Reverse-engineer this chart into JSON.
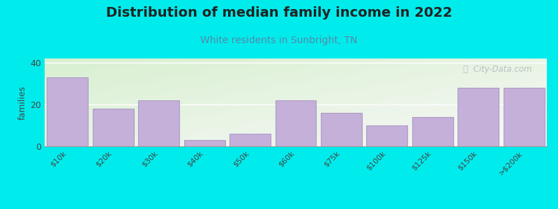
{
  "title": "Distribution of median family income in 2022",
  "subtitle": "White residents in Sunbright, TN",
  "categories": [
    "$10k",
    "$20k",
    "$30k",
    "$40k",
    "$50k",
    "$60k",
    "$75k",
    "$100k",
    "$125k",
    "$150k",
    ">$200k"
  ],
  "values": [
    33,
    18,
    22,
    3,
    6,
    22,
    16,
    10,
    14,
    28,
    28
  ],
  "bar_color": "#c4b0d8",
  "bar_edgecolor": "#b09cc8",
  "background_color": "#00ecec",
  "ylabel": "families",
  "ylim": [
    0,
    42
  ],
  "yticks": [
    0,
    20,
    40
  ],
  "title_fontsize": 14,
  "subtitle_fontsize": 10,
  "subtitle_color": "#5588aa",
  "watermark_text": "ⓘ  City-Data.com",
  "watermark_color": "#b0b8c0",
  "grad_top_left": "#d8f0d0",
  "grad_bottom_right": "#f0f0f8"
}
